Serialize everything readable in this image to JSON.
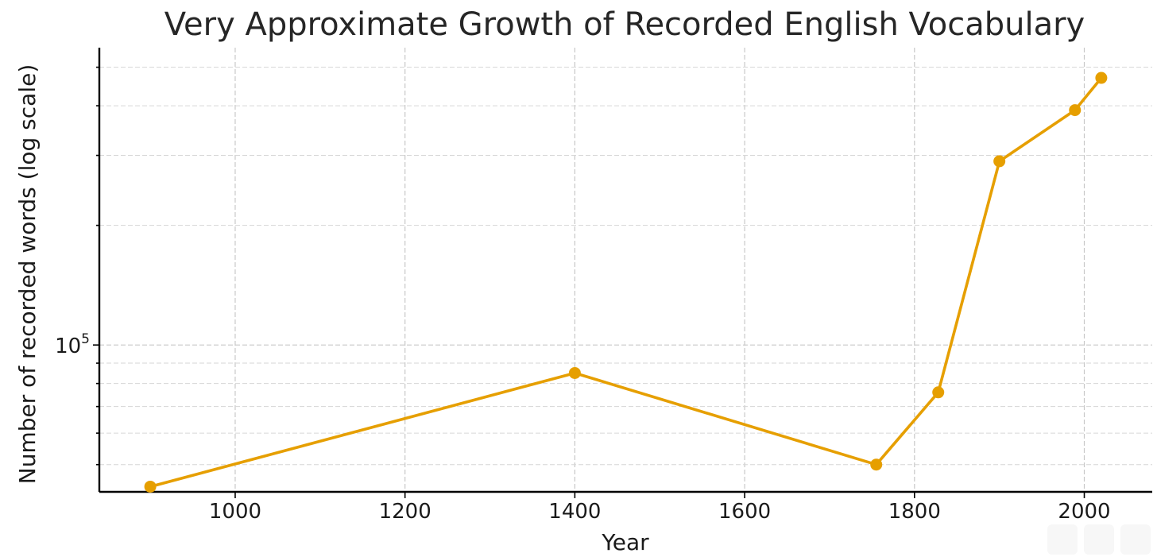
{
  "chart_data": {
    "type": "line",
    "title": "Very Approximate Growth of Recorded English Vocabulary",
    "xlabel": "Year",
    "ylabel": "Number of recorded words (log scale)",
    "yscale": "log",
    "xlim": [
      840,
      2080
    ],
    "ylim": [
      42700,
      560000
    ],
    "xticks": [
      1000,
      1200,
      1400,
      1600,
      1800,
      2000
    ],
    "yticks_labeled": [
      {
        "value": 100000,
        "base": "10",
        "exp": "5"
      }
    ],
    "grid": true,
    "series": [
      {
        "color": "#E69F00",
        "marker": "circle",
        "points": [
          {
            "x": 900,
            "y": 44000
          },
          {
            "x": 1400,
            "y": 85000
          },
          {
            "x": 1755,
            "y": 50000
          },
          {
            "x": 1828,
            "y": 76000
          },
          {
            "x": 1900,
            "y": 290000
          },
          {
            "x": 1989,
            "y": 390000
          },
          {
            "x": 2020,
            "y": 470000
          }
        ]
      }
    ]
  }
}
